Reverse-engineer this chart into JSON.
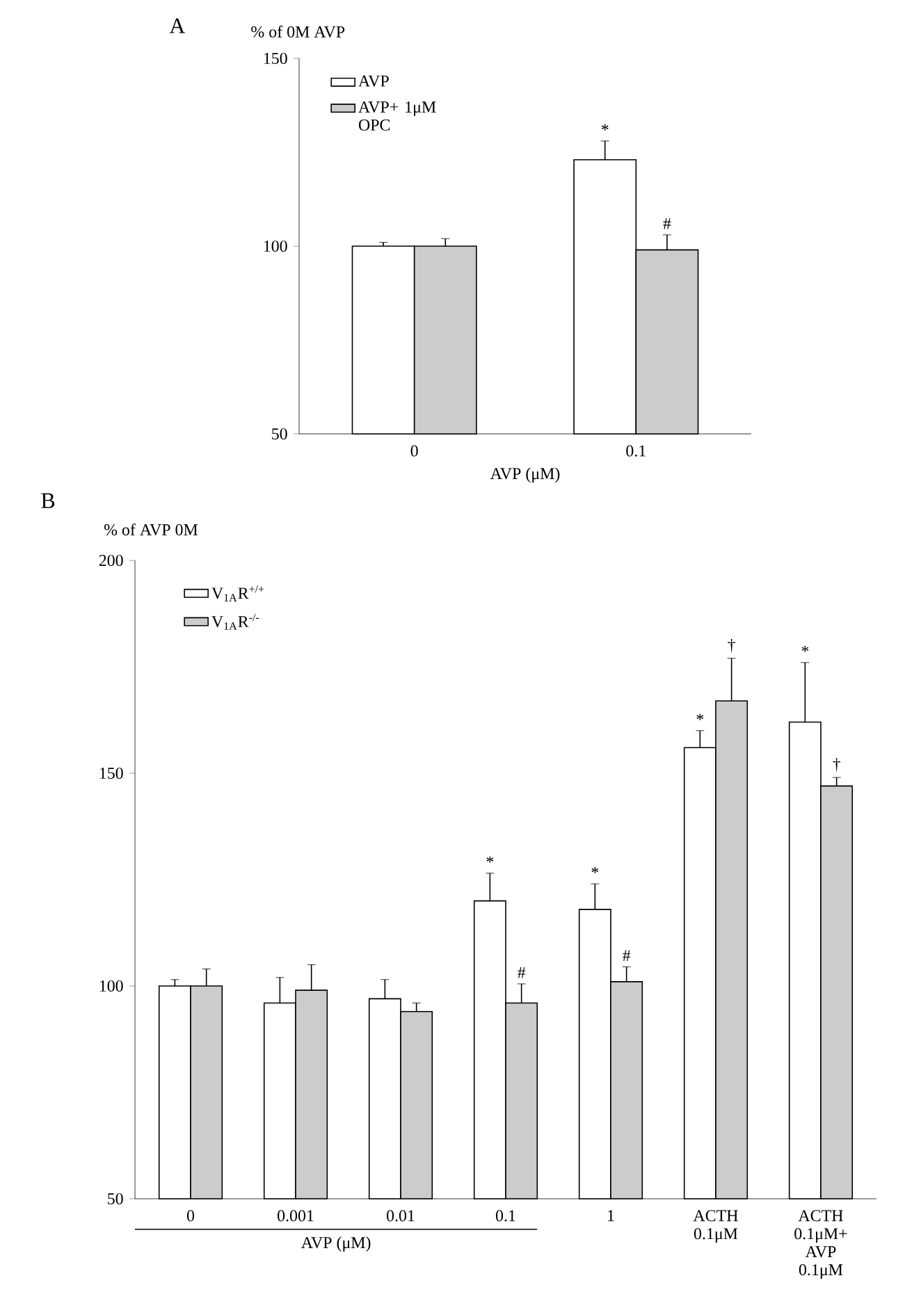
{
  "chart_data": [
    {
      "type": "bar",
      "title": "A",
      "ylabel": "% of 0M AVP",
      "xlabel": "AVP (μM)",
      "categories": [
        "0",
        "0.1"
      ],
      "series": [
        {
          "name": "AVP",
          "color": "#ffffff",
          "values": [
            100,
            123
          ],
          "errors": [
            1,
            5
          ]
        },
        {
          "name": "AVP+ 1μM OPC",
          "color": "#cccccc",
          "values": [
            100,
            99
          ],
          "errors": [
            2,
            4
          ]
        }
      ],
      "ylim": [
        50,
        150
      ],
      "yticks": [
        50,
        100,
        150
      ],
      "legend": "top left",
      "grid": false,
      "annotations": [
        "*",
        "#"
      ]
    },
    {
      "type": "bar",
      "title": "B",
      "ylabel": "% of AVP 0M",
      "xlabel": "AVP (μM)",
      "categories": [
        "0",
        "0.001",
        "0.01",
        "0.1",
        "1",
        "ACTH 0.1μM",
        "ACTH 0.1μM+ AVP 0.1μM"
      ],
      "series": [
        {
          "name": "V$_{1A}$R$^{+/+}$",
          "color": "#ffffff",
          "values": [
            100,
            96,
            97,
            120,
            118,
            156,
            162
          ],
          "errors": [
            1.5,
            6,
            4.5,
            6.5,
            6,
            4,
            14
          ]
        },
        {
          "name": "V$_{1A}$R$^{-/-}$",
          "color": "#cccccc",
          "values": [
            100,
            99,
            94,
            96,
            101,
            167,
            147
          ],
          "errors": [
            4,
            6,
            2,
            4.5,
            3.5,
            10,
            2
          ]
        }
      ],
      "ylim": [
        50,
        200
      ],
      "yticks": [
        50,
        100,
        150,
        200
      ],
      "legend": "top left",
      "grid": false,
      "annotations": [
        "*",
        "#",
        "*",
        "#",
        "*",
        "†",
        "*",
        "†"
      ]
    }
  ]
}
